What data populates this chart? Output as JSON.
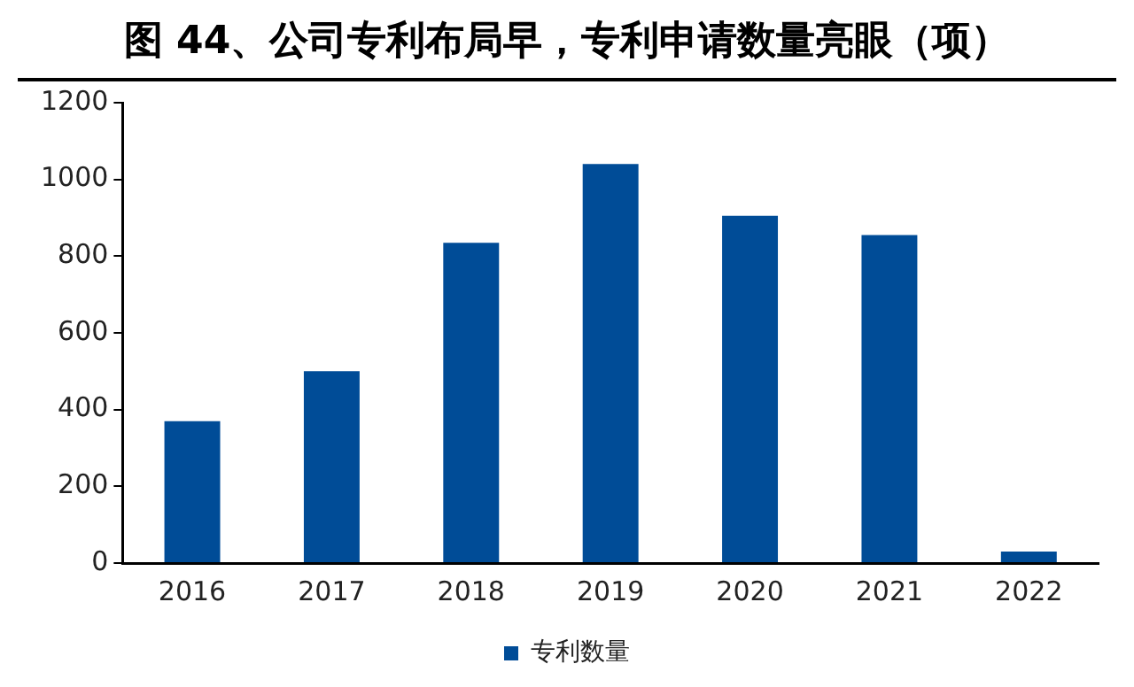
{
  "chart_data": {
    "type": "bar",
    "title": "图 44、公司专利布局早，专利申请数量亮眼（项）",
    "categories": [
      "2016",
      "2017",
      "2018",
      "2019",
      "2020",
      "2021",
      "2022"
    ],
    "series": [
      {
        "name": "专利数量",
        "color": "#004c97",
        "values": [
          370,
          500,
          835,
          1040,
          905,
          855,
          30
        ]
      }
    ],
    "ylim": [
      0,
      1200
    ],
    "yticks": [
      0,
      200,
      400,
      600,
      800,
      1000,
      1200
    ],
    "grid": false,
    "legend": "bottom"
  }
}
